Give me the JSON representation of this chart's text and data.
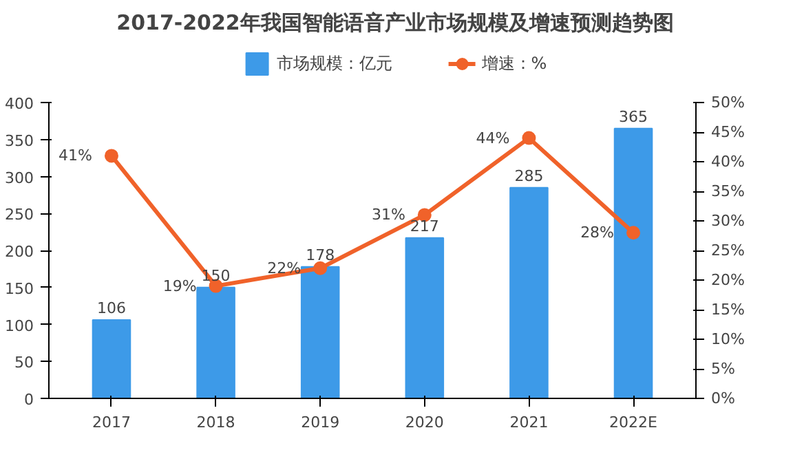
{
  "chart_data": {
    "type": "bar",
    "title": "2017-2022年我国智能语音产业市场规模及增速预测趋势图",
    "categories": [
      "2017",
      "2018",
      "2019",
      "2020",
      "2021",
      "2022E"
    ],
    "series": [
      {
        "name": "市场规模：亿元",
        "color": "#3d9ae8",
        "values": [
          106,
          150,
          178,
          217,
          285,
          365
        ],
        "value_labels": [
          "106",
          "150",
          "178",
          "217",
          "285",
          "365"
        ]
      },
      {
        "name": "增速：%",
        "type": "line",
        "axis": "y2",
        "color": "#f0622a",
        "values": [
          41,
          19,
          22,
          31,
          44,
          28
        ],
        "value_labels": [
          "41%",
          "19%",
          "22%",
          "31%",
          "44%",
          "28%"
        ]
      }
    ],
    "ylim": [
      0,
      400
    ],
    "yticks": [
      0,
      50,
      100,
      150,
      200,
      250,
      300,
      350,
      400
    ],
    "y2lim": [
      0,
      50
    ],
    "y2ticks": [
      {
        "value": 0,
        "label": "0%"
      },
      {
        "value": 5,
        "label": "5%"
      },
      {
        "value": 10,
        "label": "10%"
      },
      {
        "value": 15,
        "label": "15%"
      },
      {
        "value": 20,
        "label": "20%"
      },
      {
        "value": 25,
        "label": "25%"
      },
      {
        "value": 30,
        "label": "30%"
      },
      {
        "value": 35,
        "label": "35%"
      },
      {
        "value": 40,
        "label": "40%"
      },
      {
        "value": 45,
        "label": "45%"
      },
      {
        "value": 50,
        "label": "50%"
      }
    ],
    "legend": "top",
    "marker": "circle",
    "grid": false
  }
}
